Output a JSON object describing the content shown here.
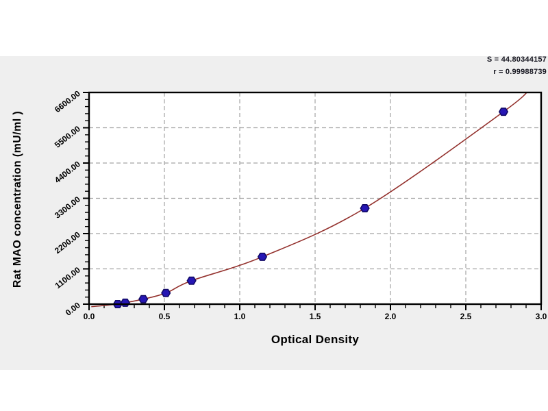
{
  "page": {
    "background": "#ffffff",
    "panel_color": "#efefef"
  },
  "chart_data": {
    "type": "scatter",
    "title": "",
    "xlabel": "Optical Density",
    "ylabel": "Rat MAO concentration (mU/ml )",
    "xlim": [
      0,
      3
    ],
    "ylim": [
      0,
      6600
    ],
    "x_ticks": [
      "0.0",
      "0.5",
      "1.0",
      "1.5",
      "2.0",
      "2.5",
      "3.0"
    ],
    "x_tick_values": [
      0,
      0.5,
      1,
      1.5,
      2,
      2.5,
      3
    ],
    "x_minor_step": 0.1,
    "y_ticks": [
      "0.00",
      "1100.00",
      "2200.00",
      "3300.00",
      "4400.00",
      "5500.00",
      "6600.00"
    ],
    "y_tick_values": [
      0,
      1100,
      2200,
      3300,
      4400,
      5500,
      6600
    ],
    "y_minor_step": 220,
    "grid": "dashed",
    "legend_position": "none",
    "points": [
      {
        "od": 0.19,
        "conc": 0
      },
      {
        "od": 0.24,
        "conc": 45
      },
      {
        "od": 0.36,
        "conc": 155
      },
      {
        "od": 0.51,
        "conc": 345
      },
      {
        "od": 0.68,
        "conc": 730
      },
      {
        "od": 1.15,
        "conc": 1475
      },
      {
        "od": 1.83,
        "conc": 2990
      },
      {
        "od": 2.75,
        "conc": 6000
      }
    ],
    "curve_anchors": [
      [
        0.015,
        -80
      ],
      [
        0.19,
        0
      ],
      [
        0.24,
        45
      ],
      [
        0.36,
        155
      ],
      [
        0.51,
        345
      ],
      [
        0.68,
        730
      ],
      [
        1.15,
        1475
      ],
      [
        1.83,
        2990
      ],
      [
        2.75,
        6000
      ],
      [
        2.93,
        6750
      ]
    ],
    "fit": {
      "s_label": "S = 44.80344157",
      "r_label": "r = 0.99988739"
    },
    "colors": {
      "curve": "#93302c",
      "marker_fill": "#2616b4",
      "marker_edge": "#120a66",
      "grid": "#a3a3a3",
      "frame": "#000000",
      "text": "#000000"
    }
  }
}
